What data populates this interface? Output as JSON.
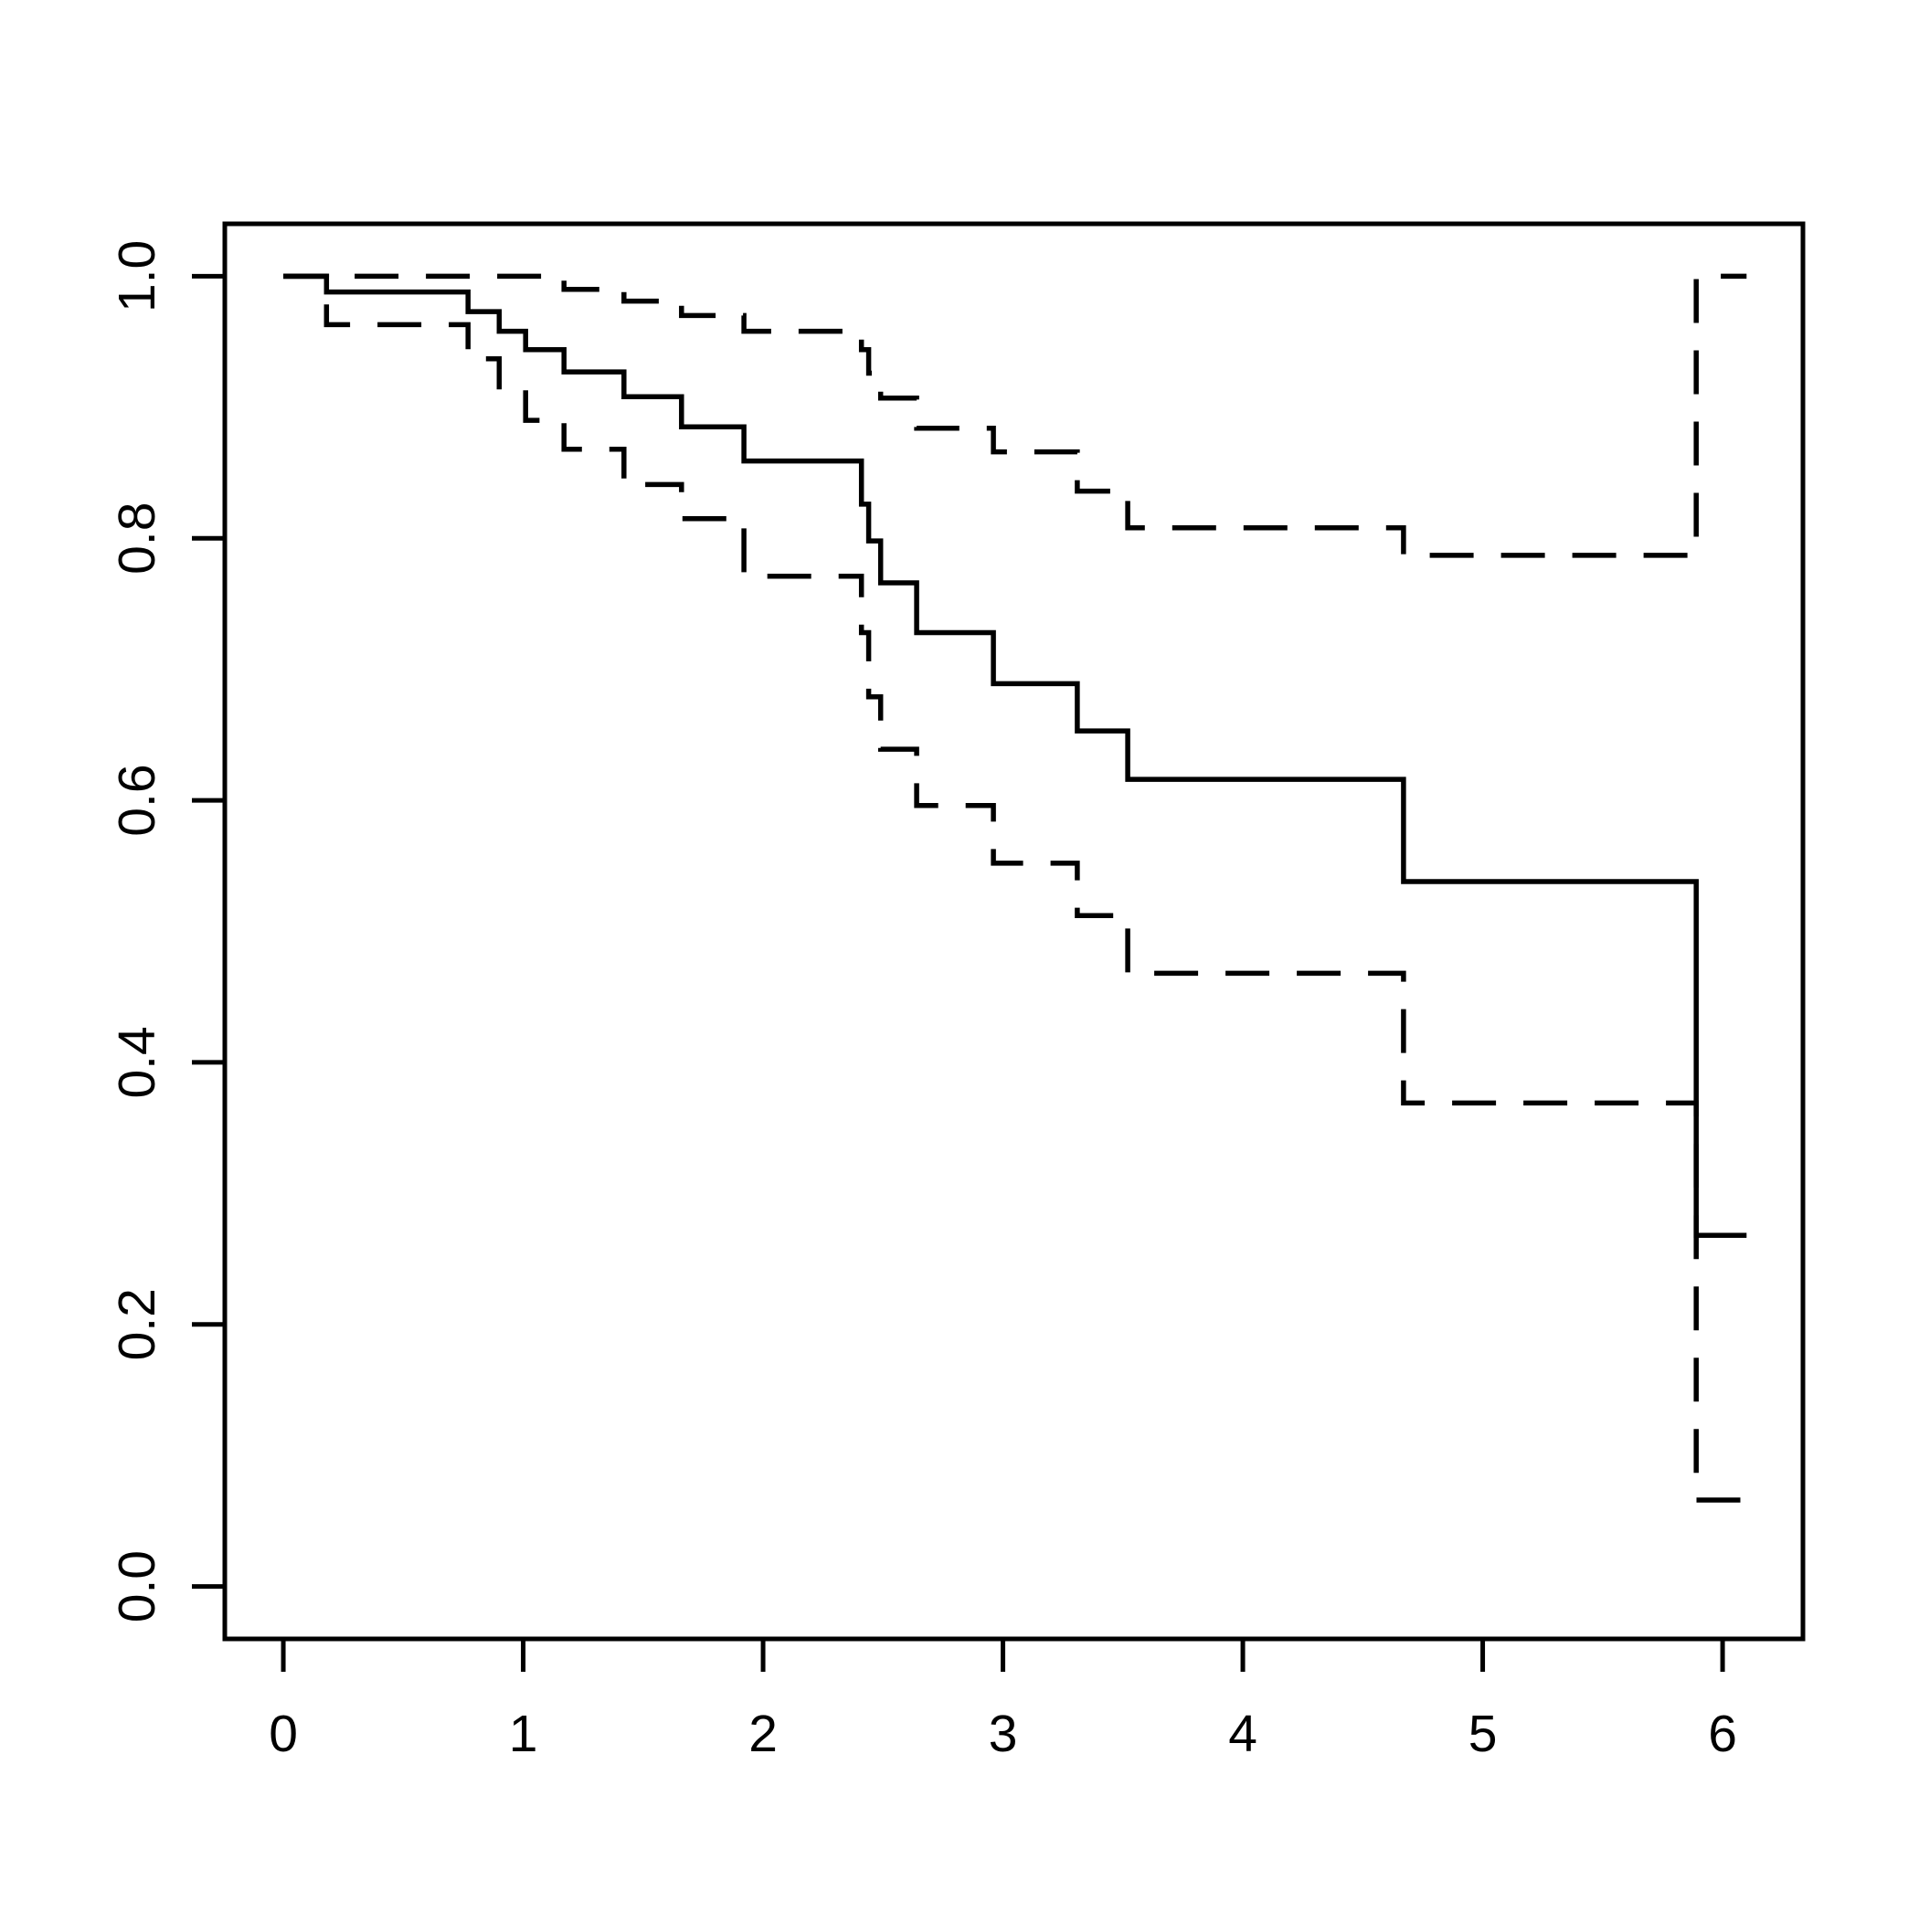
{
  "figure": {
    "background_color": "#ffffff",
    "line_color": "#000000",
    "title": "",
    "xlabel": "",
    "ylabel": ""
  },
  "chart_data": {
    "type": "line",
    "subtype": "kaplan-meier-step-survival-with-confidence-bands",
    "title": "",
    "xlabel": "",
    "ylabel": "",
    "grid": false,
    "legend": null,
    "xlim": [
      -0.244,
      6.335
    ],
    "ylim": [
      -0.04,
      1.04
    ],
    "x_ticks": {
      "values": [
        0,
        1,
        2,
        3,
        4,
        5,
        6
      ],
      "labels": [
        "0",
        "1",
        "2",
        "3",
        "4",
        "5",
        "6"
      ]
    },
    "y_ticks": {
      "values": [
        0.0,
        0.2,
        0.4,
        0.6,
        0.8,
        1.0
      ],
      "labels": [
        "0.0",
        "0.2",
        "0.4",
        "0.6",
        "0.8",
        "1.0"
      ]
    },
    "series": [
      {
        "name": "survival-estimate",
        "line_style": "solid",
        "points": [
          [
            0.0,
            1.0
          ],
          [
            0.18,
            0.988
          ],
          [
            0.77,
            0.973
          ],
          [
            0.9,
            0.958
          ],
          [
            1.01,
            0.944
          ],
          [
            1.17,
            0.927
          ],
          [
            1.42,
            0.908
          ],
          [
            1.66,
            0.885
          ],
          [
            1.92,
            0.859
          ],
          [
            2.41,
            0.826
          ],
          [
            2.44,
            0.798
          ],
          [
            2.49,
            0.766
          ],
          [
            2.64,
            0.728
          ],
          [
            2.96,
            0.689
          ],
          [
            3.31,
            0.653
          ],
          [
            3.52,
            0.616
          ],
          [
            4.67,
            0.538
          ],
          [
            5.89,
            0.268
          ],
          [
            6.1,
            0.268
          ]
        ]
      },
      {
        "name": "upper-confidence-band",
        "line_style": "dashed",
        "points": [
          [
            0.0,
            1.0
          ],
          [
            1.17,
            0.99
          ],
          [
            1.42,
            0.981
          ],
          [
            1.66,
            0.97
          ],
          [
            1.92,
            0.958
          ],
          [
            2.41,
            0.944
          ],
          [
            2.44,
            0.926
          ],
          [
            2.49,
            0.907
          ],
          [
            2.64,
            0.884
          ],
          [
            2.96,
            0.866
          ],
          [
            3.31,
            0.836
          ],
          [
            3.52,
            0.808
          ],
          [
            4.67,
            0.787
          ],
          [
            5.89,
            1.0
          ],
          [
            6.1,
            1.0
          ]
        ]
      },
      {
        "name": "lower-confidence-band",
        "line_style": "dashed",
        "points": [
          [
            0.0,
            1.0
          ],
          [
            0.18,
            0.963
          ],
          [
            0.77,
            0.937
          ],
          [
            0.9,
            0.913
          ],
          [
            1.01,
            0.89
          ],
          [
            1.17,
            0.868
          ],
          [
            1.42,
            0.841
          ],
          [
            1.66,
            0.815
          ],
          [
            1.92,
            0.771
          ],
          [
            2.41,
            0.728
          ],
          [
            2.44,
            0.679
          ],
          [
            2.49,
            0.639
          ],
          [
            2.64,
            0.596
          ],
          [
            2.96,
            0.552
          ],
          [
            3.31,
            0.512
          ],
          [
            3.52,
            0.468
          ],
          [
            4.67,
            0.369
          ],
          [
            5.89,
            0.066
          ],
          [
            6.1,
            0.066
          ]
        ]
      }
    ]
  }
}
